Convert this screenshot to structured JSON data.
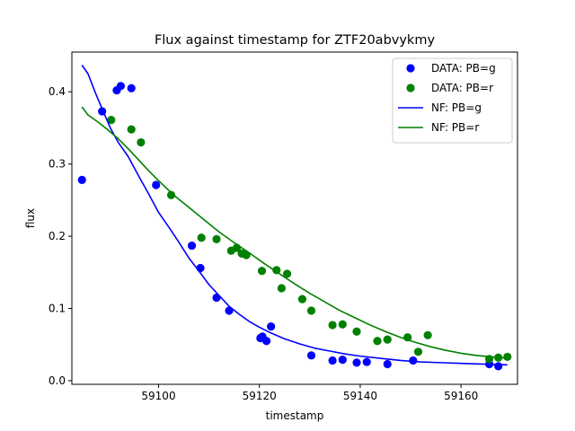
{
  "chart_data": {
    "type": "scatter",
    "title": "Flux against timestamp for ZTF20abvykmy",
    "xlabel": "timestamp",
    "ylabel": "flux",
    "xlim": [
      59082.8,
      59171.2
    ],
    "ylim": [
      -0.005,
      0.455
    ],
    "xticks": [
      59100,
      59120,
      59140,
      59160
    ],
    "yticks": [
      0.0,
      0.1,
      0.2,
      0.3,
      0.4
    ],
    "xtick_labels": [
      "59100",
      "59120",
      "59140",
      "59160"
    ],
    "ytick_labels": [
      "0.0",
      "0.1",
      "0.2",
      "0.3",
      "0.4"
    ],
    "grid": false,
    "legend_position": "top-right",
    "colors": {
      "g": "#0000ff",
      "r": "#008000"
    },
    "series": [
      {
        "name": "DATA: PB=g",
        "kind": "points",
        "color": "#0000ff",
        "x": [
          59084.8,
          59088.8,
          59091.7,
          59092.5,
          59094.6,
          59099.5,
          59106.6,
          59108.3,
          59111.5,
          59114.0,
          59120.2,
          59120.6,
          59121.4,
          59122.3,
          59130.3,
          59134.5,
          59136.5,
          59139.3,
          59141.3,
          59145.4,
          59150.5,
          59165.6,
          59167.4
        ],
        "y": [
          0.278,
          0.373,
          0.402,
          0.408,
          0.405,
          0.271,
          0.187,
          0.156,
          0.115,
          0.097,
          0.059,
          0.061,
          0.055,
          0.075,
          0.035,
          0.028,
          0.029,
          0.025,
          0.026,
          0.023,
          0.028,
          0.023,
          0.02
        ]
      },
      {
        "name": "DATA: PB=r",
        "kind": "points",
        "color": "#008000",
        "x": [
          59090.6,
          59094.6,
          59096.5,
          59102.5,
          59108.5,
          59111.5,
          59114.4,
          59115.5,
          59116.5,
          59117.4,
          59120.5,
          59123.4,
          59124.4,
          59125.5,
          59128.5,
          59130.3,
          59134.5,
          59136.5,
          59139.3,
          59143.4,
          59145.4,
          59149.4,
          59151.5,
          59153.4,
          59165.6,
          59167.4,
          59169.2
        ],
        "y": [
          0.361,
          0.348,
          0.33,
          0.257,
          0.198,
          0.196,
          0.18,
          0.184,
          0.176,
          0.174,
          0.152,
          0.153,
          0.128,
          0.148,
          0.113,
          0.097,
          0.077,
          0.078,
          0.068,
          0.055,
          0.057,
          0.06,
          0.04,
          0.063,
          0.03,
          0.032,
          0.033
        ]
      },
      {
        "name": "NF: PB=g",
        "kind": "line",
        "color": "#0000ff",
        "x": [
          59084.8,
          59086,
          59087.5,
          59089,
          59090.5,
          59092,
          59094,
          59096,
          59098,
          59100,
          59102,
          59104,
          59106,
          59108,
          59110,
          59112,
          59114,
          59116,
          59118,
          59120,
          59122,
          59125,
          59128,
          59131,
          59134,
          59137,
          59140,
          59144,
          59148,
          59152,
          59156,
          59160,
          59164,
          59169.2
        ],
        "y": [
          0.437,
          0.425,
          0.398,
          0.373,
          0.349,
          0.33,
          0.31,
          0.284,
          0.259,
          0.233,
          0.213,
          0.192,
          0.17,
          0.152,
          0.133,
          0.118,
          0.103,
          0.092,
          0.082,
          0.074,
          0.067,
          0.058,
          0.051,
          0.045,
          0.041,
          0.037,
          0.034,
          0.031,
          0.028,
          0.026,
          0.025,
          0.024,
          0.023,
          0.022
        ]
      },
      {
        "name": "NF: PB=r",
        "kind": "line",
        "color": "#008000",
        "x": [
          59084.8,
          59086,
          59088,
          59090,
          59092,
          59094,
          59096,
          59098,
          59100,
          59103,
          59106,
          59109,
          59112,
          59115,
          59118,
          59121,
          59124,
          59127,
          59130,
          59133,
          59136,
          59139,
          59142,
          59145,
          59148,
          59151,
          59154,
          59157,
          59160,
          59163,
          59166,
          59169.2
        ],
        "y": [
          0.379,
          0.368,
          0.358,
          0.347,
          0.335,
          0.321,
          0.306,
          0.291,
          0.277,
          0.257,
          0.24,
          0.223,
          0.206,
          0.191,
          0.177,
          0.162,
          0.148,
          0.134,
          0.121,
          0.109,
          0.097,
          0.087,
          0.077,
          0.068,
          0.06,
          0.053,
          0.047,
          0.042,
          0.038,
          0.035,
          0.033,
          0.031
        ]
      }
    ]
  }
}
